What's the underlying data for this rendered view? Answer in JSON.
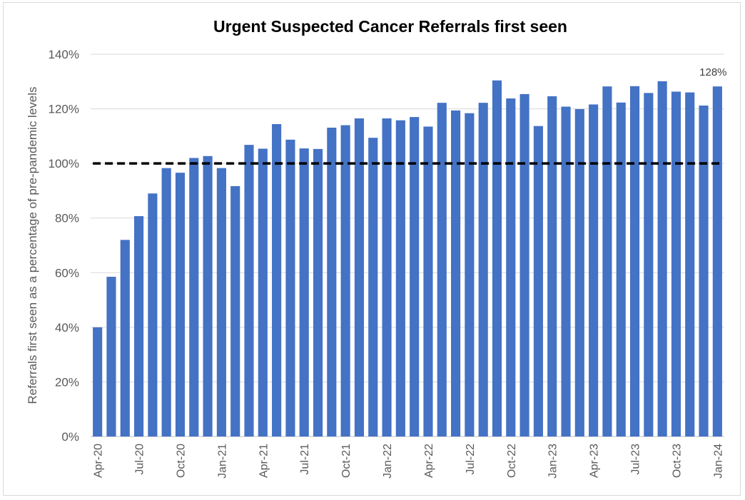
{
  "chart_data": {
    "type": "bar",
    "title": "Urgent Suspected Cancer Referrals first seen",
    "xlabel": "",
    "ylabel": "Referrals first seen as a percentage of pre-pandemic levels",
    "ylim": [
      0,
      140
    ],
    "yticks": [
      "0%",
      "20%",
      "40%",
      "60%",
      "80%",
      "100%",
      "120%",
      "140%"
    ],
    "grid": true,
    "bar_color": "#4472c4",
    "reference_line": {
      "value": 100,
      "style": "dashed",
      "color": "#000000"
    },
    "categories": [
      "Apr-20",
      "May-20",
      "Jun-20",
      "Jul-20",
      "Aug-20",
      "Sep-20",
      "Oct-20",
      "Nov-20",
      "Dec-20",
      "Jan-21",
      "Feb-21",
      "Mar-21",
      "Apr-21",
      "May-21",
      "Jun-21",
      "Jul-21",
      "Aug-21",
      "Sep-21",
      "Oct-21",
      "Nov-21",
      "Dec-21",
      "Jan-22",
      "Feb-22",
      "Mar-22",
      "Apr-22",
      "May-22",
      "Jun-22",
      "Jul-22",
      "Aug-22",
      "Sep-22",
      "Oct-22",
      "Nov-22",
      "Dec-22",
      "Jan-23",
      "Feb-23",
      "Mar-23",
      "Apr-23",
      "May-23",
      "Jun-23",
      "Jul-23",
      "Aug-23",
      "Sep-23",
      "Oct-23",
      "Nov-23",
      "Dec-23",
      "Jan-24"
    ],
    "xtick_labels": [
      "Apr-20",
      "",
      "",
      "Jul-20",
      "",
      "",
      "Oct-20",
      "",
      "",
      "Jan-21",
      "",
      "",
      "Apr-21",
      "",
      "",
      "Jul-21",
      "",
      "",
      "Oct-21",
      "",
      "",
      "Jan-22",
      "",
      "",
      "Apr-22",
      "",
      "",
      "Jul-22",
      "",
      "",
      "Oct-22",
      "",
      "",
      "Jan-23",
      "",
      "",
      "Apr-23",
      "",
      "",
      "Jul-23",
      "",
      "",
      "Oct-23",
      "",
      "",
      "Jan-24"
    ],
    "values": [
      40,
      58.5,
      72,
      80.7,
      89,
      98.3,
      96.6,
      102,
      102.7,
      98.3,
      91.7,
      106.8,
      105.4,
      114.4,
      108.7,
      105.5,
      105.3,
      113.1,
      114,
      116.5,
      109.4,
      116.5,
      115.8,
      117,
      113.5,
      122.2,
      119.4,
      118.4,
      122.2,
      130.4,
      123.8,
      125.4,
      113.7,
      124.6,
      120.8,
      119.9,
      121.6,
      128.2,
      122.3,
      128.3,
      125.8,
      130.1,
      126.3,
      126,
      121.2,
      128.2
    ],
    "annotations": [
      {
        "category": "Jan-24",
        "text": "128%"
      }
    ]
  }
}
